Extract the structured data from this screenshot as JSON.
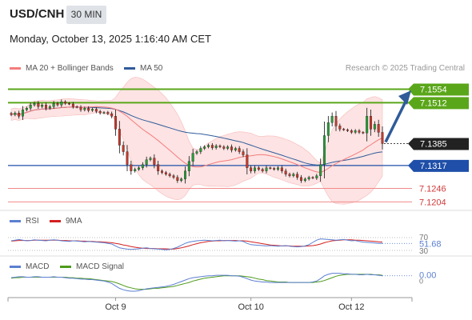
{
  "header": {
    "symbol": "USD/CNH",
    "timeframe": "30 MIN",
    "datetime": "Monday, October 13, 2025 1:16:40 AM CET"
  },
  "legend": {
    "ma20": "MA 20 + Bollinger Bands",
    "ma50": "MA 50",
    "ma20_color": "#f47c7c",
    "ma50_color": "#2f5b9a"
  },
  "credit": "Research © 2025 Trading Central",
  "colors": {
    "support_line": "#1f4fa8",
    "resistance_line": "#5aa61a",
    "minor_level": "#f08a8a",
    "current_price_badge": "#222222",
    "bollinger_fill": "#fde0e0",
    "arrow": "#2f5b9a"
  },
  "chart_data": [
    {
      "type": "candlestick",
      "panel": "price",
      "xlabels": [
        "Oct 9",
        "Oct 10",
        "Oct 12"
      ],
      "ylim": [
        7.118,
        7.159
      ],
      "levels": [
        {
          "value": 7.1554,
          "label": "7.1554",
          "kind": "resistance"
        },
        {
          "value": 7.1512,
          "label": "7.1512",
          "kind": "resistance"
        },
        {
          "value": 7.1385,
          "label": "7.1385",
          "kind": "current"
        },
        {
          "value": 7.1317,
          "label": "7.1317",
          "kind": "support"
        },
        {
          "value": 7.1246,
          "label": "7.1246",
          "kind": "minor"
        },
        {
          "value": 7.1204,
          "label": "7.1204",
          "kind": "minor"
        }
      ],
      "close": [
        7.1475,
        7.148,
        7.147,
        7.149,
        7.1495,
        7.1505,
        7.151,
        7.15,
        7.1505,
        7.1495,
        7.15,
        7.151,
        7.1505,
        7.1515,
        7.151,
        7.1508,
        7.15,
        7.1498,
        7.149,
        7.1495,
        7.1488,
        7.1492,
        7.1485,
        7.148,
        7.1482,
        7.1478,
        7.147,
        7.143,
        7.138,
        7.136,
        7.132,
        7.13,
        7.1305,
        7.131,
        7.132,
        7.1335,
        7.134,
        7.132,
        7.13,
        7.1295,
        7.129,
        7.1285,
        7.128,
        7.127,
        7.1275,
        7.13,
        7.133,
        7.1355,
        7.136,
        7.137,
        7.1375,
        7.138,
        7.1372,
        7.1378,
        7.1375,
        7.137,
        7.1375,
        7.1365,
        7.137,
        7.136,
        7.135,
        7.131,
        7.13,
        7.131,
        7.1305,
        7.13,
        7.131,
        7.1308,
        7.1305,
        7.131,
        7.13,
        7.129,
        7.1285,
        7.129,
        7.128,
        7.127,
        7.1275,
        7.128,
        7.1278,
        7.1285,
        7.132,
        7.141,
        7.145,
        7.147,
        7.144,
        7.143,
        7.1428,
        7.1425,
        7.142,
        7.1425,
        7.142,
        7.1418,
        7.147,
        7.143,
        7.1445,
        7.142,
        7.1385
      ]
    },
    {
      "type": "line",
      "panel": "rsi",
      "series": [
        {
          "name": "RSI"
        },
        {
          "name": "9MA"
        }
      ],
      "ylim": [
        30,
        70
      ],
      "tick_labels": [
        "70",
        "30"
      ],
      "last_value": "51.68",
      "rsi": [
        60,
        62,
        64,
        62,
        60,
        61,
        63,
        62,
        61,
        60,
        62,
        63,
        62,
        60,
        59,
        58,
        60,
        59,
        58,
        57,
        58,
        57,
        56,
        55,
        54,
        52,
        50,
        44,
        38,
        36,
        34,
        33,
        34,
        35,
        37,
        38,
        36,
        35,
        34,
        33,
        32,
        33,
        36,
        40,
        46,
        52,
        56,
        58,
        60,
        61,
        62,
        61,
        60,
        61,
        62,
        60,
        61,
        60,
        59,
        60,
        58,
        52,
        48,
        47,
        46,
        45,
        44,
        45,
        44,
        43,
        44,
        45,
        43,
        42,
        41,
        42,
        44,
        48,
        55,
        62,
        66,
        65,
        64,
        63,
        62,
        63,
        64,
        62,
        60,
        61,
        58,
        56,
        55,
        54,
        53,
        52,
        51.68
      ],
      "ma9": [
        59,
        60,
        61,
        61,
        61,
        61,
        62,
        62,
        62,
        62,
        62,
        62,
        62,
        61,
        61,
        60,
        60,
        60,
        59,
        59,
        58,
        58,
        57,
        57,
        56,
        55,
        54,
        52,
        50,
        47,
        45,
        42,
        40,
        38,
        37,
        36,
        36,
        36,
        35,
        35,
        35,
        34,
        34,
        36,
        38,
        41,
        44,
        48,
        51,
        54,
        56,
        58,
        59,
        60,
        60,
        61,
        61,
        61,
        61,
        60,
        60,
        59,
        57,
        55,
        53,
        51,
        49,
        47,
        46,
        45,
        44,
        44,
        44,
        43,
        43,
        43,
        43,
        44,
        45,
        47,
        50,
        54,
        57,
        60,
        61,
        62,
        63,
        63,
        63,
        62,
        62,
        61,
        60,
        59,
        58,
        57,
        56
      ]
    },
    {
      "type": "line",
      "panel": "macd",
      "series": [
        {
          "name": "MACD"
        },
        {
          "name": "MACD Signal"
        }
      ],
      "last_value": "0.00",
      "tick_labels": [
        "0"
      ],
      "macd": [
        0.4,
        0.5,
        0.6,
        0.6,
        0.5,
        0.5,
        0.6,
        0.6,
        0.5,
        0.5,
        0.5,
        0.6,
        0.5,
        0.5,
        0.4,
        0.3,
        0.3,
        0.2,
        0.1,
        0.1,
        0.0,
        0.0,
        -0.1,
        -0.2,
        -0.3,
        -0.5,
        -0.8,
        -1.3,
        -1.8,
        -2.1,
        -2.3,
        -2.4,
        -2.4,
        -2.3,
        -2.1,
        -1.9,
        -1.8,
        -1.7,
        -1.6,
        -1.5,
        -1.4,
        -1.2,
        -1.0,
        -0.7,
        -0.4,
        -0.1,
        0.2,
        0.4,
        0.5,
        0.6,
        0.7,
        0.8,
        0.8,
        0.9,
        0.9,
        0.9,
        0.9,
        0.8,
        0.8,
        0.7,
        0.5,
        0.2,
        -0.1,
        -0.3,
        -0.4,
        -0.5,
        -0.5,
        -0.6,
        -0.6,
        -0.6,
        -0.6,
        -0.6,
        -0.6,
        -0.6,
        -0.6,
        -0.6,
        -0.6,
        -0.6,
        -0.5,
        -0.3,
        0.2,
        0.8,
        1.1,
        1.3,
        1.3,
        1.3,
        1.2,
        1.2,
        1.1,
        1.1,
        1.0,
        1.0,
        1.1,
        1.0,
        1.0,
        0.9,
        0.8
      ],
      "signal": [
        0.3,
        0.4,
        0.4,
        0.5,
        0.5,
        0.5,
        0.5,
        0.5,
        0.5,
        0.5,
        0.5,
        0.5,
        0.5,
        0.5,
        0.5,
        0.4,
        0.4,
        0.3,
        0.3,
        0.2,
        0.2,
        0.1,
        0.0,
        -0.1,
        -0.2,
        -0.3,
        -0.4,
        -0.6,
        -0.9,
        -1.2,
        -1.5,
        -1.7,
        -1.9,
        -2.0,
        -2.0,
        -2.0,
        -1.9,
        -1.8,
        -1.8,
        -1.7,
        -1.6,
        -1.5,
        -1.4,
        -1.2,
        -1.0,
        -0.8,
        -0.6,
        -0.3,
        -0.1,
        0.1,
        0.3,
        0.4,
        0.5,
        0.6,
        0.7,
        0.8,
        0.8,
        0.8,
        0.8,
        0.8,
        0.7,
        0.6,
        0.5,
        0.3,
        0.1,
        0.0,
        -0.2,
        -0.3,
        -0.4,
        -0.5,
        -0.5,
        -0.5,
        -0.6,
        -0.6,
        -0.6,
        -0.6,
        -0.6,
        -0.6,
        -0.6,
        -0.5,
        -0.4,
        -0.2,
        0.1,
        0.4,
        0.7,
        0.9,
        1.0,
        1.1,
        1.1,
        1.1,
        1.1,
        1.1,
        1.1,
        1.1,
        1.0,
        1.0,
        0.9
      ]
    }
  ],
  "rsi_legend": {
    "rsi": "RSI",
    "ma": "9MA",
    "rsi_color": "#5b7fd1",
    "ma_color": "#d42020"
  },
  "macd_legend": {
    "macd": "MACD",
    "signal": "MACD Signal",
    "macd_color": "#5b7fd1",
    "signal_color": "#4f9a1c"
  }
}
